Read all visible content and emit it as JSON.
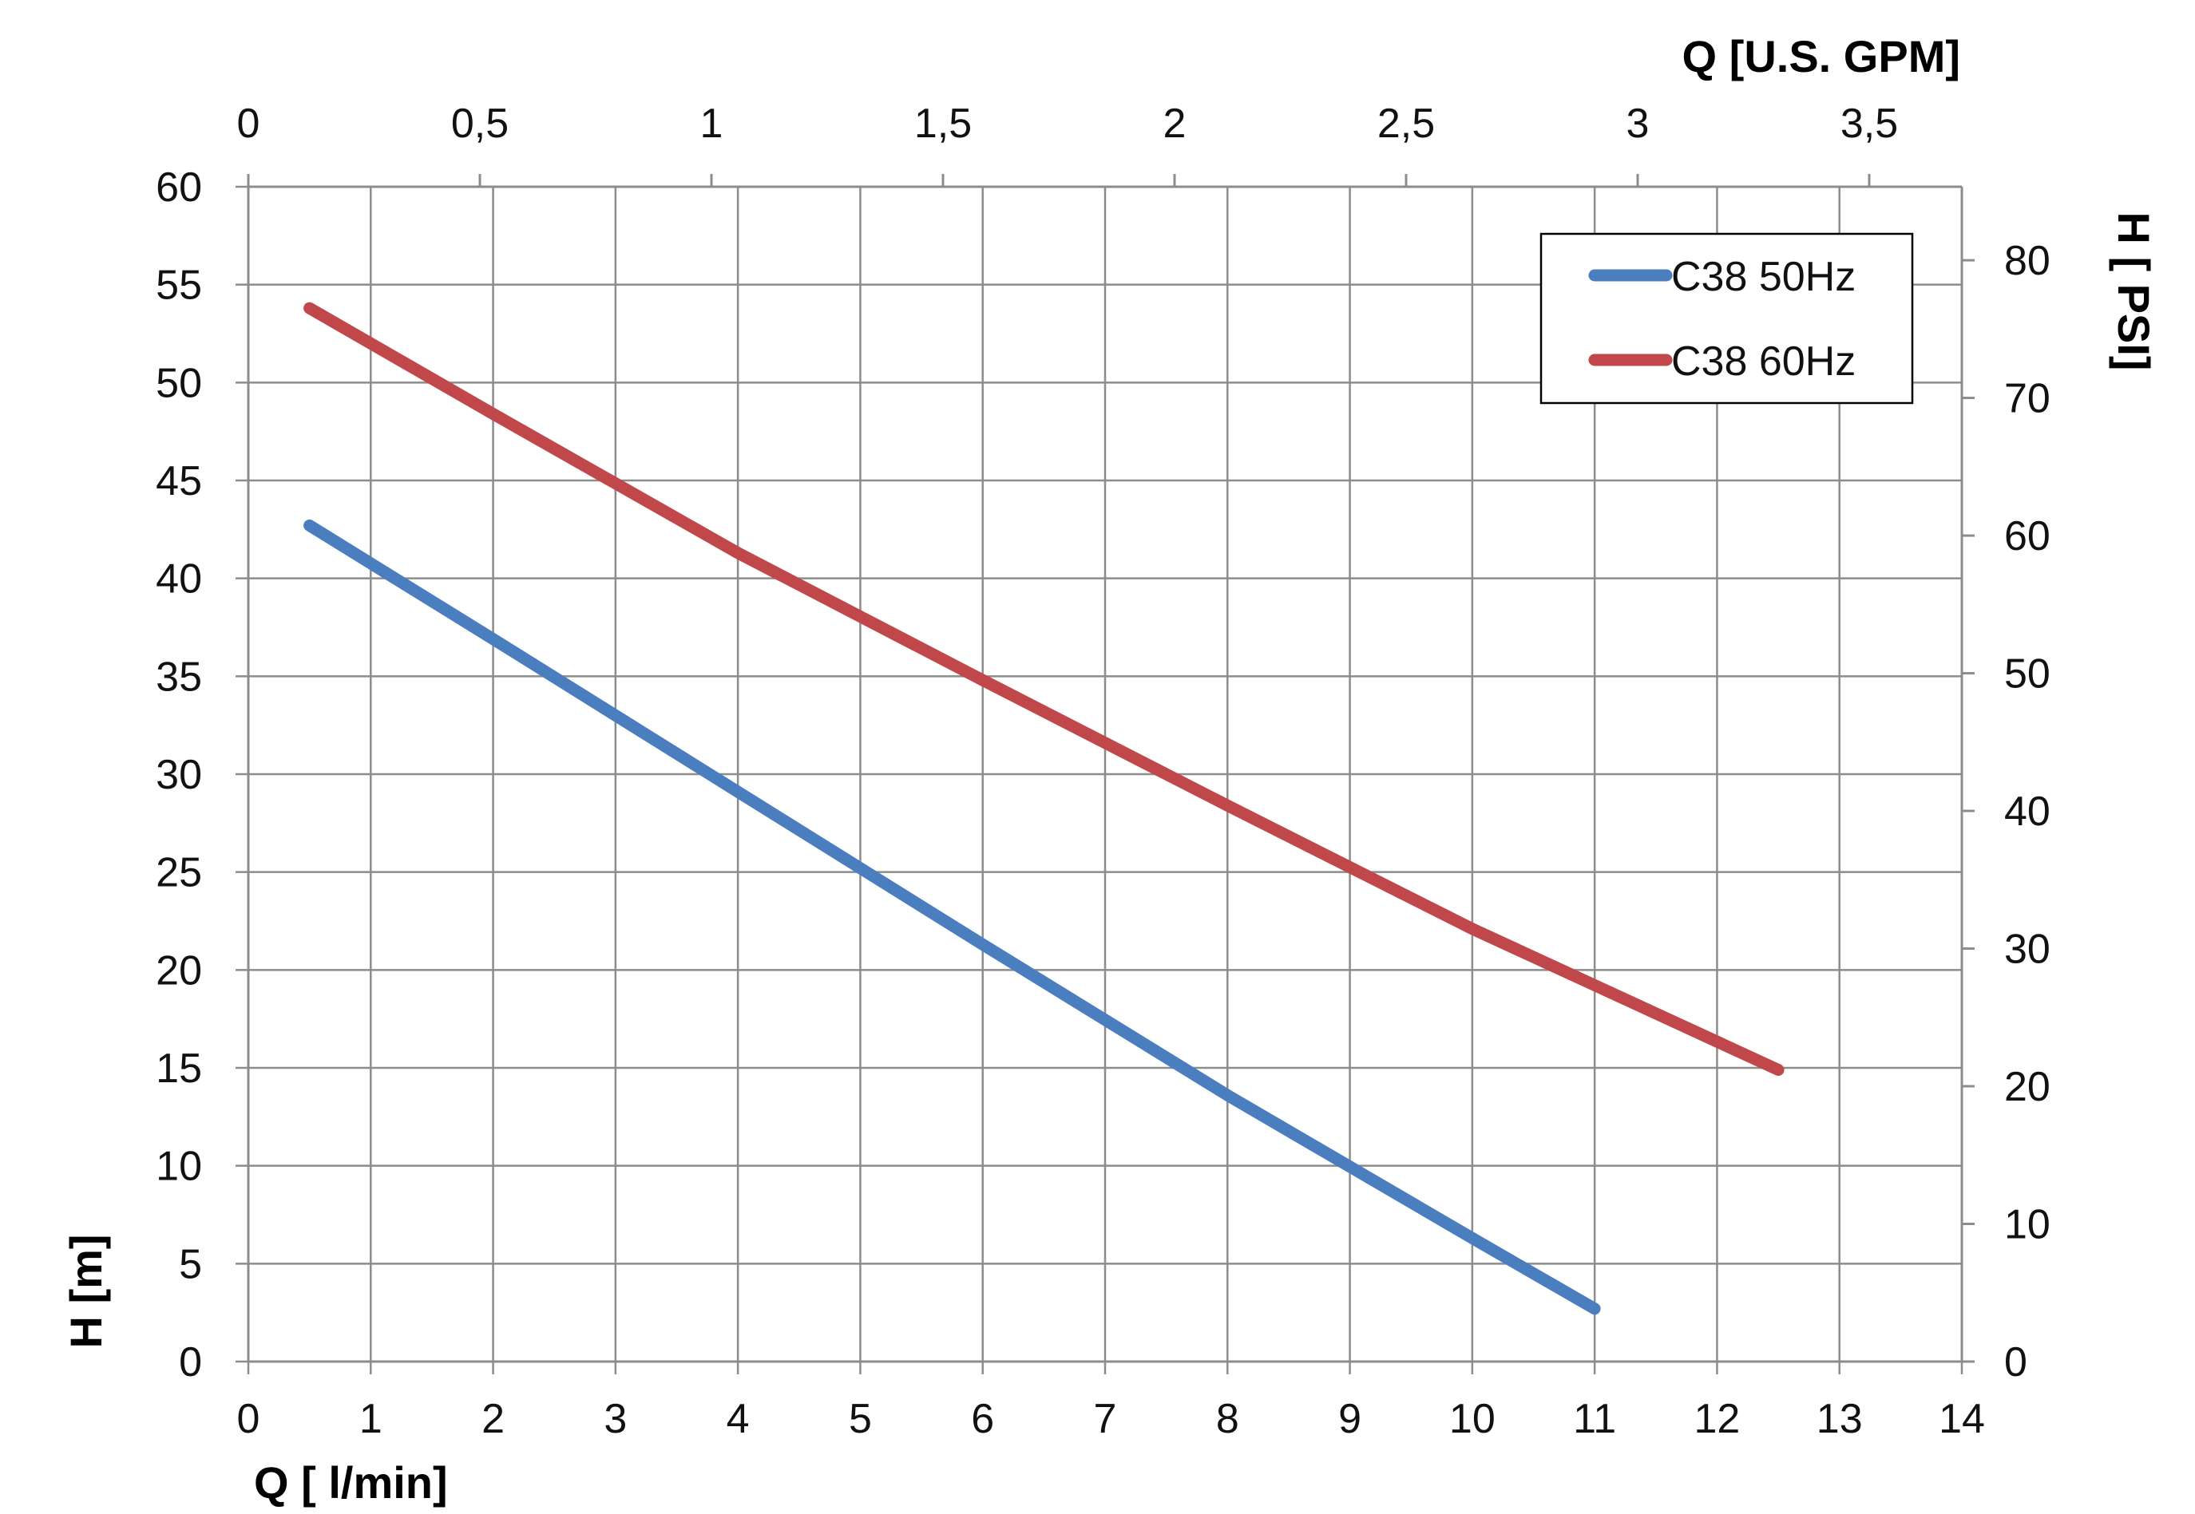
{
  "chart_data": {
    "type": "line",
    "x": [
      0.5,
      11
    ],
    "series": [
      {
        "name": "C38 50Hz",
        "color": "#4a7ebf",
        "points": [
          [
            0.5,
            42.7
          ],
          [
            2,
            36.9
          ],
          [
            4,
            29.1
          ],
          [
            6,
            21.3
          ],
          [
            8,
            13.6
          ],
          [
            10,
            6.3
          ],
          [
            11,
            2.7
          ]
        ]
      },
      {
        "name": "C38 60Hz",
        "color": "#c0474a",
        "points": [
          [
            0.5,
            53.8
          ],
          [
            2,
            48.4
          ],
          [
            4,
            41.3
          ],
          [
            6,
            34.8
          ],
          [
            8,
            28.4
          ],
          [
            10,
            22.1
          ],
          [
            12.5,
            14.9
          ]
        ]
      }
    ],
    "xlabel": "Q [ l/min]",
    "ylabel": "H [m]",
    "x2label": "Q  [U.S. GPM]",
    "y2label": "H [ PSI]",
    "xlim": [
      0,
      14
    ],
    "ylim": [
      0,
      60
    ],
    "x2lim": [
      0,
      3.7
    ],
    "y2lim": [
      0,
      85.34
    ],
    "x_ticks": [
      "0",
      "1",
      "2",
      "3",
      "4",
      "5",
      "6",
      "7",
      "8",
      "9",
      "10",
      "11",
      "12",
      "13",
      "14"
    ],
    "y_ticks": [
      "0",
      "5",
      "10",
      "15",
      "20",
      "25",
      "30",
      "35",
      "40",
      "45",
      "50",
      "55",
      "60"
    ],
    "x2_ticks": [
      {
        "value": 0,
        "label": "0"
      },
      {
        "value": 0.5,
        "label": "0,5"
      },
      {
        "value": 1,
        "label": "1"
      },
      {
        "value": 1.5,
        "label": "1,5"
      },
      {
        "value": 2,
        "label": "2"
      },
      {
        "value": 2.5,
        "label": "2,5"
      },
      {
        "value": 3,
        "label": "3"
      },
      {
        "value": 3.5,
        "label": "3,5"
      }
    ],
    "y2_ticks": [
      {
        "value": 0,
        "label": "0"
      },
      {
        "value": 10,
        "label": "10"
      },
      {
        "value": 20,
        "label": "20"
      },
      {
        "value": 30,
        "label": "30"
      },
      {
        "value": 40,
        "label": "40"
      },
      {
        "value": 50,
        "label": "50"
      },
      {
        "value": 60,
        "label": "60"
      },
      {
        "value": 70,
        "label": "70"
      },
      {
        "value": 80,
        "label": "80"
      }
    ],
    "grid": true,
    "legend_position": "top-right"
  }
}
